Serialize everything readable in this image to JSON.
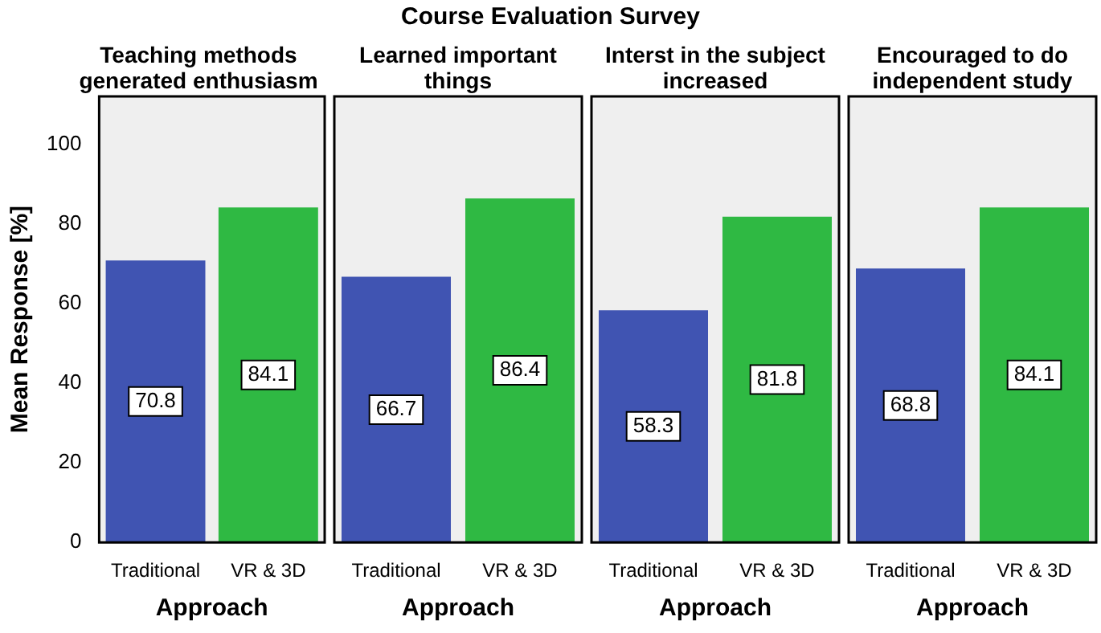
{
  "chart_data": [
    {
      "type": "bar",
      "title": "Teaching methods generated enthusiasm",
      "annotations": [
        "Course Evaluation Survey"
      ],
      "categories": [
        "Traditional",
        "VR & 3D"
      ],
      "values": [
        70.8,
        84.1
      ],
      "colors": [
        "#4054b2",
        "#2fb943"
      ],
      "xlabel": "Approach",
      "ylabel": "Mean Response [%]",
      "ylim": [
        0,
        112
      ],
      "yticks": [
        0,
        20,
        40,
        60,
        80,
        100
      ],
      "data_labels": true
    },
    {
      "type": "bar",
      "title": "Learned important things",
      "categories": [
        "Traditional",
        "VR & 3D"
      ],
      "values": [
        66.7,
        86.4
      ],
      "colors": [
        "#4054b2",
        "#2fb943"
      ],
      "xlabel": "Approach",
      "ylim": [
        0,
        112
      ],
      "yticks": [
        0,
        20,
        40,
        60,
        80,
        100
      ],
      "data_labels": true,
      "tick_labels": "x"
    },
    {
      "type": "bar",
      "title": "Interst in the subject increased",
      "categories": [
        "Traditional",
        "VR & 3D"
      ],
      "values": [
        58.3,
        81.8
      ],
      "colors": [
        "#4054b2",
        "#2fb943"
      ],
      "xlabel": "Approach",
      "ylim": [
        0,
        112
      ],
      "yticks": [
        0,
        20,
        40,
        60,
        80,
        100
      ],
      "data_labels": true,
      "tick_labels": "x"
    },
    {
      "type": "bar",
      "title": "Encouraged to do independent study",
      "categories": [
        "Traditional",
        "VR & 3D"
      ],
      "values": [
        68.8,
        84.1
      ],
      "colors": [
        "#4054b2",
        "#2fb943"
      ],
      "xlabel": "Approach",
      "ylim": [
        0,
        112
      ],
      "yticks": [
        0,
        20,
        40,
        60,
        80,
        100
      ],
      "data_labels": true,
      "tick_labels": "x"
    }
  ]
}
